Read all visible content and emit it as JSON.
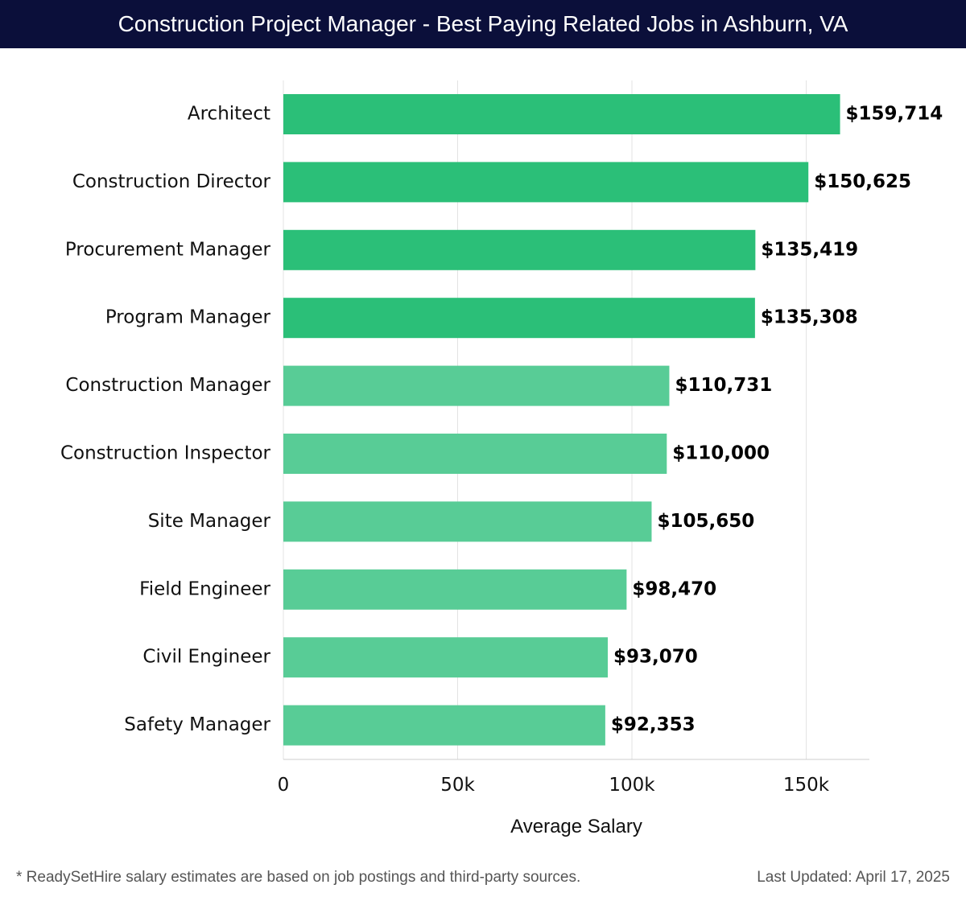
{
  "header": {
    "title": "Construction Project Manager - Best Paying Related Jobs in Ashburn, VA"
  },
  "footer": {
    "note": "* ReadySetHire salary estimates are based on job postings and third-party sources.",
    "updated": "Last Updated: April 17, 2025"
  },
  "colors": {
    "title_bg": "#0b0f3a",
    "bar_dark": "#2bbf78",
    "bar_light": "#58cc96",
    "grid": "#e3e3e3"
  },
  "chart_data": {
    "type": "bar",
    "orientation": "horizontal",
    "title": "Construction Project Manager - Best Paying Related Jobs in Ashburn, VA",
    "xlabel": "Average Salary",
    "ylabel": "",
    "xlim": [
      0,
      168000
    ],
    "grid": true,
    "ticks": [
      {
        "value": 0,
        "label": "0"
      },
      {
        "value": 50000,
        "label": "50k"
      },
      {
        "value": 100000,
        "label": "100k"
      },
      {
        "value": 150000,
        "label": "150k"
      }
    ],
    "categories": [
      "Architect",
      "Construction Director",
      "Procurement Manager",
      "Program Manager",
      "Construction Manager",
      "Construction Inspector",
      "Site Manager",
      "Field Engineer",
      "Civil Engineer",
      "Safety Manager"
    ],
    "values": [
      159714,
      150625,
      135419,
      135308,
      110731,
      110000,
      105650,
      98470,
      93070,
      92353
    ],
    "value_labels": [
      "$159,714",
      "$150,625",
      "$135,419",
      "$135,308",
      "$110,731",
      "$110,000",
      "$105,650",
      "$98,470",
      "$93,070",
      "$92,353"
    ]
  }
}
